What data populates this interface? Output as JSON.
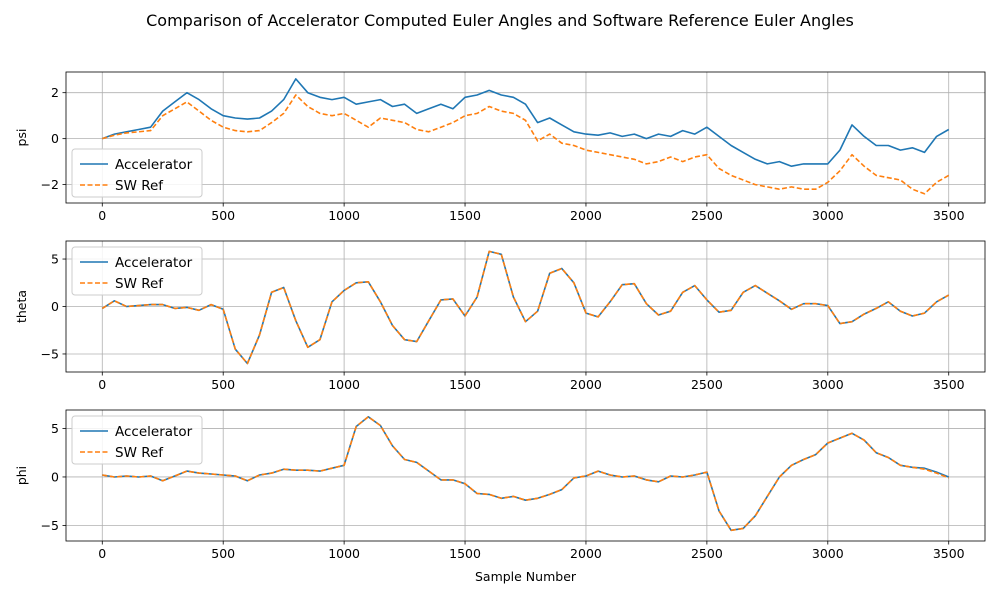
{
  "figure": {
    "title": "Comparison of Accelerator Computed Euler Angles and Software Reference Euler Angles"
  },
  "colors": {
    "accelerator": "#1f77b4",
    "sw_ref": "#ff7f0e",
    "grid": "#b0b0b0",
    "axes": "#000000"
  },
  "chart_data": [
    {
      "type": "line",
      "ylabel": "psi",
      "xlabel": "",
      "xlim": [
        -150,
        3650
      ],
      "ylim": [
        -2.8,
        2.9
      ],
      "xticks": [
        0,
        500,
        1000,
        1500,
        2000,
        2500,
        3000,
        3500
      ],
      "yticks": [
        -2,
        0,
        2
      ],
      "grid": true,
      "legend": "lower-left",
      "x": [
        0,
        50,
        100,
        150,
        200,
        250,
        300,
        350,
        400,
        450,
        500,
        550,
        600,
        650,
        700,
        750,
        800,
        850,
        900,
        950,
        1000,
        1050,
        1100,
        1150,
        1200,
        1250,
        1300,
        1350,
        1400,
        1450,
        1500,
        1550,
        1600,
        1650,
        1700,
        1750,
        1800,
        1850,
        1900,
        1950,
        2000,
        2050,
        2100,
        2150,
        2200,
        2250,
        2300,
        2350,
        2400,
        2450,
        2500,
        2550,
        2600,
        2650,
        2700,
        2750,
        2800,
        2850,
        2900,
        2950,
        3000,
        3050,
        3100,
        3150,
        3200,
        3250,
        3300,
        3350,
        3400,
        3450,
        3500
      ],
      "series": [
        {
          "name": "Accelerator",
          "style": "solid",
          "values": [
            0.0,
            0.2,
            0.3,
            0.4,
            0.5,
            1.2,
            1.6,
            2.0,
            1.7,
            1.3,
            1.0,
            0.9,
            0.85,
            0.9,
            1.2,
            1.7,
            2.6,
            2.0,
            1.8,
            1.7,
            1.8,
            1.5,
            1.6,
            1.7,
            1.4,
            1.5,
            1.1,
            1.3,
            1.5,
            1.3,
            1.8,
            1.9,
            2.1,
            1.9,
            1.8,
            1.5,
            0.7,
            0.9,
            0.6,
            0.3,
            0.2,
            0.15,
            0.25,
            0.1,
            0.2,
            0.0,
            0.2,
            0.1,
            0.35,
            0.2,
            0.5,
            0.1,
            -0.3,
            -0.6,
            -0.9,
            -1.1,
            -1.0,
            -1.2,
            -1.1,
            -1.1,
            -1.1,
            -0.5,
            0.6,
            0.1,
            -0.3,
            -0.3,
            -0.5,
            -0.4,
            -0.6,
            0.1,
            0.4
          ]
        },
        {
          "name": "SW Ref",
          "style": "dashed",
          "values": [
            0.0,
            0.15,
            0.25,
            0.3,
            0.35,
            1.0,
            1.3,
            1.6,
            1.2,
            0.8,
            0.5,
            0.35,
            0.3,
            0.35,
            0.7,
            1.1,
            1.9,
            1.4,
            1.1,
            1.0,
            1.1,
            0.8,
            0.5,
            0.9,
            0.8,
            0.7,
            0.4,
            0.3,
            0.5,
            0.7,
            1.0,
            1.1,
            1.4,
            1.2,
            1.1,
            0.8,
            -0.1,
            0.2,
            -0.2,
            -0.3,
            -0.5,
            -0.6,
            -0.7,
            -0.8,
            -0.9,
            -1.1,
            -1.0,
            -0.8,
            -1.0,
            -0.8,
            -0.7,
            -1.3,
            -1.6,
            -1.8,
            -2.0,
            -2.1,
            -2.2,
            -2.1,
            -2.2,
            -2.2,
            -1.9,
            -1.4,
            -0.7,
            -1.2,
            -1.6,
            -1.7,
            -1.8,
            -2.2,
            -2.4,
            -1.9,
            -1.6
          ]
        }
      ]
    },
    {
      "type": "line",
      "ylabel": "theta",
      "xlabel": "",
      "xlim": [
        -150,
        3650
      ],
      "ylim": [
        -6.9,
        6.9
      ],
      "xticks": [
        0,
        500,
        1000,
        1500,
        2000,
        2500,
        3000,
        3500
      ],
      "yticks": [
        -5,
        0,
        5
      ],
      "grid": true,
      "legend": "upper-left",
      "x": [
        0,
        50,
        100,
        150,
        200,
        250,
        300,
        350,
        400,
        450,
        500,
        550,
        600,
        650,
        700,
        750,
        800,
        850,
        900,
        950,
        1000,
        1050,
        1100,
        1150,
        1200,
        1250,
        1300,
        1350,
        1400,
        1450,
        1500,
        1550,
        1600,
        1650,
        1700,
        1750,
        1800,
        1850,
        1900,
        1950,
        2000,
        2050,
        2100,
        2150,
        2200,
        2250,
        2300,
        2350,
        2400,
        2450,
        2500,
        2550,
        2600,
        2650,
        2700,
        2750,
        2800,
        2850,
        2900,
        2950,
        3000,
        3050,
        3100,
        3150,
        3200,
        3250,
        3300,
        3350,
        3400,
        3450,
        3500
      ],
      "series": [
        {
          "name": "Accelerator",
          "style": "solid",
          "values": [
            -0.2,
            0.6,
            0.0,
            0.1,
            0.2,
            0.2,
            -0.2,
            -0.1,
            -0.4,
            0.2,
            -0.3,
            -4.5,
            -6.0,
            -3.0,
            1.5,
            2.0,
            -1.5,
            -4.3,
            -3.5,
            0.5,
            1.7,
            2.5,
            2.6,
            0.5,
            -2.0,
            -3.5,
            -3.7,
            -1.5,
            0.7,
            0.8,
            -1.0,
            1.0,
            5.8,
            5.5,
            1.0,
            -1.6,
            -0.5,
            3.5,
            4.0,
            2.5,
            -0.7,
            -1.1,
            0.5,
            2.3,
            2.4,
            0.3,
            -0.9,
            -0.5,
            1.5,
            2.2,
            0.7,
            -0.6,
            -0.4,
            1.5,
            2.2,
            1.4,
            0.6,
            -0.3,
            0.3,
            0.3,
            0.1,
            -1.8,
            -1.6,
            -0.8,
            -0.2,
            0.5,
            -0.5,
            -1.0,
            -0.7,
            0.5,
            1.2
          ]
        },
        {
          "name": "SW Ref",
          "style": "dashed",
          "values": [
            -0.2,
            0.6,
            0.0,
            0.1,
            0.2,
            0.2,
            -0.2,
            -0.1,
            -0.4,
            0.2,
            -0.3,
            -4.5,
            -6.0,
            -3.0,
            1.5,
            2.0,
            -1.5,
            -4.3,
            -3.5,
            0.5,
            1.7,
            2.5,
            2.6,
            0.5,
            -2.0,
            -3.5,
            -3.7,
            -1.5,
            0.7,
            0.8,
            -1.0,
            1.0,
            5.8,
            5.5,
            1.0,
            -1.6,
            -0.5,
            3.5,
            4.0,
            2.5,
            -0.7,
            -1.1,
            0.5,
            2.3,
            2.4,
            0.3,
            -0.9,
            -0.5,
            1.5,
            2.2,
            0.7,
            -0.6,
            -0.4,
            1.5,
            2.2,
            1.4,
            0.6,
            -0.3,
            0.3,
            0.3,
            0.1,
            -1.8,
            -1.6,
            -0.8,
            -0.2,
            0.5,
            -0.5,
            -1.0,
            -0.7,
            0.5,
            1.2
          ]
        }
      ]
    },
    {
      "type": "line",
      "ylabel": "phi",
      "xlabel": "Sample Number",
      "xlim": [
        -150,
        3650
      ],
      "ylim": [
        -6.6,
        6.9
      ],
      "xticks": [
        0,
        500,
        1000,
        1500,
        2000,
        2500,
        3000,
        3500
      ],
      "yticks": [
        -5,
        0,
        5
      ],
      "grid": true,
      "legend": "upper-left",
      "x": [
        0,
        50,
        100,
        150,
        200,
        250,
        300,
        350,
        400,
        450,
        500,
        550,
        600,
        650,
        700,
        750,
        800,
        850,
        900,
        950,
        1000,
        1050,
        1100,
        1150,
        1200,
        1250,
        1300,
        1350,
        1400,
        1450,
        1500,
        1550,
        1600,
        1650,
        1700,
        1750,
        1800,
        1850,
        1900,
        1950,
        2000,
        2050,
        2100,
        2150,
        2200,
        2250,
        2300,
        2350,
        2400,
        2450,
        2500,
        2550,
        2600,
        2650,
        2700,
        2750,
        2800,
        2850,
        2900,
        2950,
        3000,
        3050,
        3100,
        3150,
        3200,
        3250,
        3300,
        3350,
        3400,
        3450,
        3500
      ],
      "series": [
        {
          "name": "Accelerator",
          "style": "solid",
          "values": [
            0.2,
            0.0,
            0.1,
            0.0,
            0.1,
            -0.4,
            0.1,
            0.6,
            0.4,
            0.3,
            0.2,
            0.1,
            -0.4,
            0.2,
            0.4,
            0.8,
            0.7,
            0.7,
            0.6,
            0.9,
            1.2,
            5.2,
            6.2,
            5.3,
            3.2,
            1.8,
            1.5,
            0.6,
            -0.3,
            -0.3,
            -0.7,
            -1.7,
            -1.8,
            -2.2,
            -2.0,
            -2.4,
            -2.2,
            -1.8,
            -1.3,
            -0.1,
            0.1,
            0.6,
            0.2,
            0.0,
            0.1,
            -0.3,
            -0.5,
            0.1,
            0.0,
            0.2,
            0.5,
            -3.5,
            -5.5,
            -5.3,
            -4.0,
            -2.0,
            0.0,
            1.2,
            1.8,
            2.3,
            3.5,
            4.0,
            4.5,
            3.8,
            2.5,
            2.0,
            1.2,
            1.0,
            0.9,
            0.5,
            0.0
          ]
        },
        {
          "name": "SW Ref",
          "style": "dashed",
          "values": [
            0.2,
            0.0,
            0.1,
            0.0,
            0.1,
            -0.4,
            0.1,
            0.6,
            0.4,
            0.3,
            0.2,
            0.1,
            -0.4,
            0.2,
            0.4,
            0.8,
            0.7,
            0.7,
            0.6,
            0.9,
            1.2,
            5.2,
            6.2,
            5.3,
            3.2,
            1.8,
            1.5,
            0.6,
            -0.3,
            -0.3,
            -0.7,
            -1.7,
            -1.8,
            -2.2,
            -2.0,
            -2.4,
            -2.2,
            -1.8,
            -1.3,
            -0.1,
            0.1,
            0.6,
            0.2,
            0.0,
            0.1,
            -0.3,
            -0.5,
            0.1,
            0.0,
            0.2,
            0.5,
            -3.5,
            -5.5,
            -5.3,
            -4.0,
            -2.0,
            0.0,
            1.2,
            1.8,
            2.3,
            3.5,
            4.0,
            4.5,
            3.8,
            2.5,
            2.0,
            1.2,
            1.0,
            0.8,
            0.4,
            -0.1
          ]
        }
      ]
    }
  ]
}
